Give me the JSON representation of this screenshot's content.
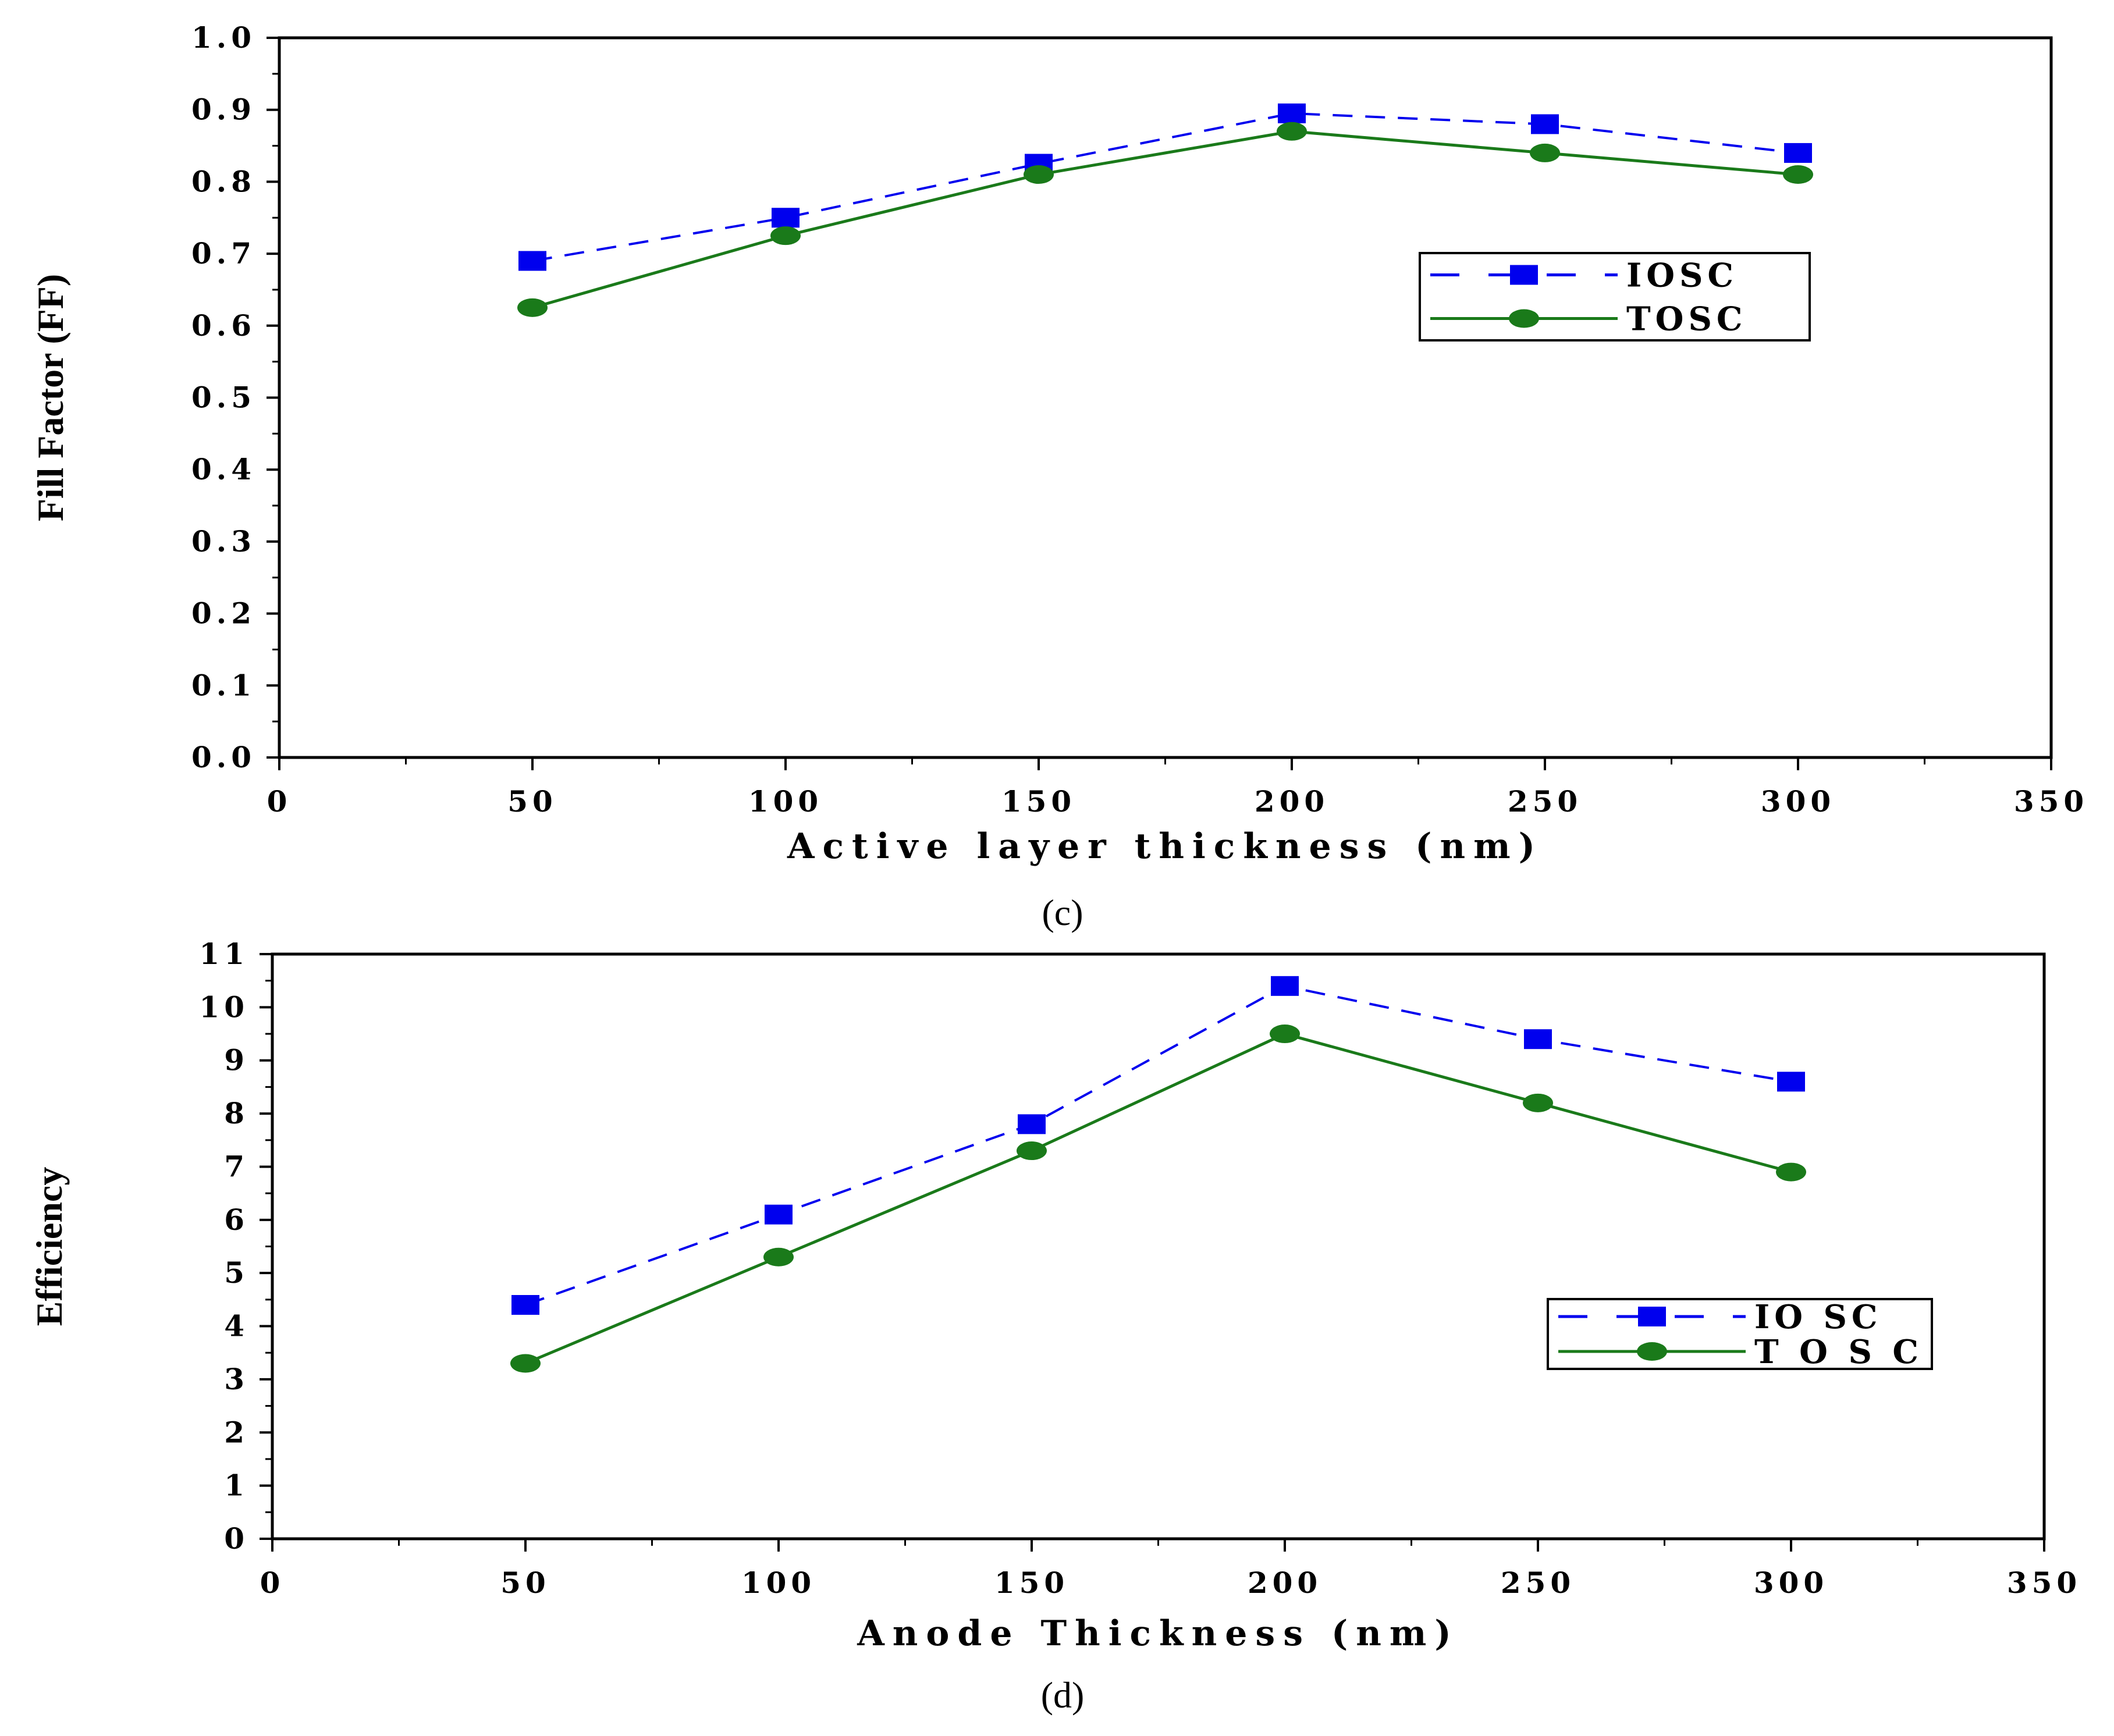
{
  "colors": {
    "iosc": "#0000ee",
    "tosc": "#1a7a1a",
    "axis": "#000000"
  },
  "panels": [
    {
      "panel_label": "(c)",
      "legend": {
        "items": [
          "IOSC",
          "TOSC"
        ]
      },
      "chart_data": {
        "type": "line",
        "title": "",
        "xlabel": "Active layer thickness (nm)",
        "ylabel": "Fill Factor (FF)",
        "x": [
          50,
          100,
          150,
          200,
          250,
          300
        ],
        "xlim": [
          0,
          350
        ],
        "ylim": [
          0,
          1.0
        ],
        "xticks": [
          0,
          50,
          100,
          150,
          200,
          250,
          300,
          350
        ],
        "yticks": [
          0.0,
          0.1,
          0.2,
          0.3,
          0.4,
          0.5,
          0.6,
          0.7,
          0.8,
          0.9,
          1.0
        ],
        "xtick_labels": [
          "0",
          "50",
          "100",
          "150",
          "200",
          "250",
          "300",
          "350"
        ],
        "ytick_labels": [
          "0.0",
          "0.1",
          "0.2",
          "0.3",
          "0.4",
          "0.5",
          "0.6",
          "0.7",
          "0.8",
          "0.9",
          "1.0"
        ],
        "legend_position": "right-middle",
        "series": [
          {
            "name": "IOSC",
            "style": "dashed-square",
            "values": [
              0.69,
              0.75,
              0.825,
              0.895,
              0.88,
              0.84
            ]
          },
          {
            "name": "TOSC",
            "style": "solid-circle",
            "values": [
              0.625,
              0.725,
              0.81,
              0.87,
              0.84,
              0.81
            ]
          }
        ]
      }
    },
    {
      "panel_label": "(d)",
      "legend": {
        "items": [
          "IO SC",
          "T O S C"
        ]
      },
      "chart_data": {
        "type": "line",
        "title": "",
        "xlabel": "Anode Thickness (nm)",
        "ylabel": "Efficiency",
        "x": [
          50,
          100,
          150,
          200,
          250,
          300
        ],
        "xlim": [
          0,
          350
        ],
        "ylim": [
          0,
          11
        ],
        "xticks": [
          0,
          50,
          100,
          150,
          200,
          250,
          300,
          350
        ],
        "yticks": [
          0,
          1,
          2,
          3,
          4,
          5,
          6,
          7,
          8,
          9,
          10,
          11
        ],
        "xtick_labels": [
          "0",
          "50",
          "100",
          "150",
          "200",
          "250",
          "300",
          "350"
        ],
        "ytick_labels": [
          "0",
          "1",
          "2",
          "3",
          "4",
          "5",
          "6",
          "7",
          "8",
          "9",
          "10",
          "11"
        ],
        "legend_position": "right-lower",
        "series": [
          {
            "name": "IOSC",
            "style": "dashed-square",
            "values": [
              4.4,
              6.1,
              7.8,
              10.4,
              9.4,
              8.6
            ]
          },
          {
            "name": "TOSC",
            "style": "solid-circle",
            "values": [
              3.3,
              5.3,
              7.3,
              9.5,
              8.2,
              6.9
            ]
          }
        ]
      }
    }
  ]
}
